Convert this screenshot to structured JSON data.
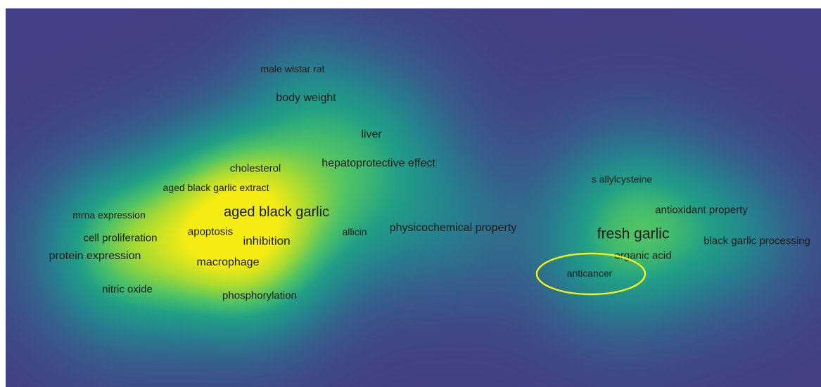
{
  "chart_data": {
    "type": "heatmap",
    "subtype": "keyword density visualization",
    "legend": "none",
    "grid": false,
    "colors": {
      "background": "#433e85",
      "label": "#1a1a1a",
      "highlight_ellipse": "#f2ee16"
    },
    "terms": [
      {
        "label": "male wistar rat",
        "density": 0.2
      },
      {
        "label": "body weight",
        "density": 0.35
      },
      {
        "label": "liver",
        "density": 0.85
      },
      {
        "label": "cholesterol",
        "density": 0.45
      },
      {
        "label": "hepatoprotective effect",
        "density": 0.7
      },
      {
        "label": "aged black garlic extract",
        "density": 0.55
      },
      {
        "label": "aged black garlic",
        "density": 1.0
      },
      {
        "label": "mrna expression",
        "density": 0.4
      },
      {
        "label": "apoptosis",
        "density": 0.8
      },
      {
        "label": "cell proliferation",
        "density": 0.55
      },
      {
        "label": "inhibition",
        "density": 0.75
      },
      {
        "label": "allicin",
        "density": 0.4
      },
      {
        "label": "physicochemical property",
        "density": 0.65
      },
      {
        "label": "protein expression",
        "density": 0.75
      },
      {
        "label": "macrophage",
        "density": 0.65
      },
      {
        "label": "nitric oxide",
        "density": 0.55
      },
      {
        "label": "phosphorylation",
        "density": 0.4
      },
      {
        "label": "s allylcysteine",
        "density": 0.45
      },
      {
        "label": "antioxidant property",
        "density": 0.55
      },
      {
        "label": "fresh garlic",
        "density": 1.0
      },
      {
        "label": "black garlic processing",
        "density": 0.5
      },
      {
        "label": "organic acid",
        "density": 0.55
      },
      {
        "label": "anticancer",
        "density": 0.35
      }
    ],
    "highlighted_term": "anticancer"
  }
}
